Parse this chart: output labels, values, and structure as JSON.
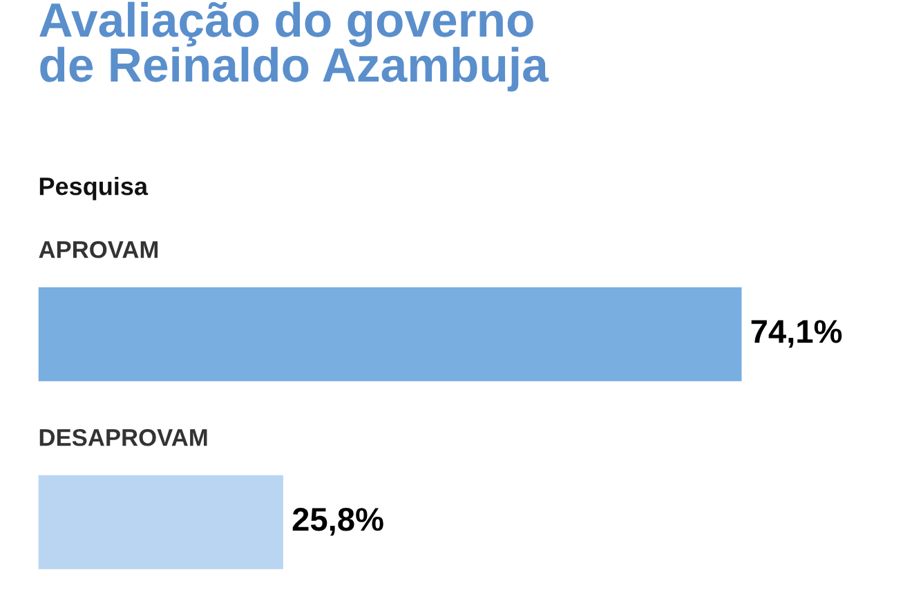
{
  "chart_data": {
    "type": "bar",
    "orientation": "horizontal",
    "title": "Avaliação do governo\nde Reinaldo Azambuja",
    "subtitle": "Pesquisa",
    "categories": [
      "APROVAM",
      "DESAPROVAM"
    ],
    "values": [
      74.1,
      25.8
    ],
    "colors": [
      "#79aee0",
      "#b9d5f1"
    ],
    "value_labels": [
      "74,1%",
      "25,8%"
    ],
    "legend": false
  }
}
